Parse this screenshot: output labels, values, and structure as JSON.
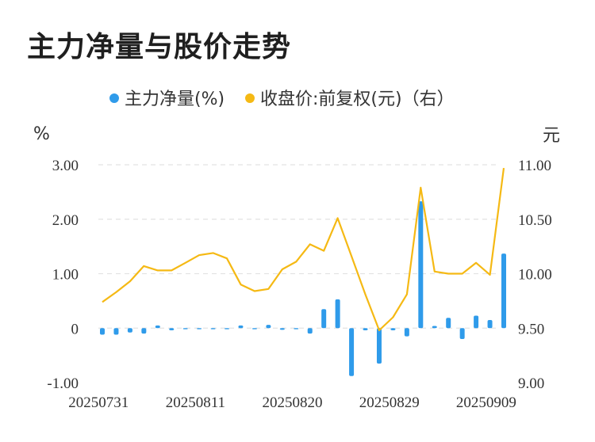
{
  "title": "主力净量与股价走势",
  "colors": {
    "bar": "#2f9bea",
    "line": "#f5b914",
    "grid": "#e3e3e3"
  },
  "chart_data": {
    "type": "bar+line",
    "legend": {
      "placement": "top-center",
      "items": [
        "主力净量(%)",
        "收盘价:前复权(元)（右）"
      ]
    },
    "left_unit": "%",
    "right_unit": "元",
    "left_ticks": [
      "3.00",
      "2.00",
      "1.00",
      "0",
      "-1.00"
    ],
    "right_ticks": [
      "11.00",
      "10.50",
      "10.00",
      "9.50",
      "9.00"
    ],
    "ylim_left": [
      -1.0,
      3.0
    ],
    "ylim_right": [
      9.0,
      11.0
    ],
    "x_tick_labels": [
      "20250731",
      "20250811",
      "20250820",
      "20250829",
      "20250909"
    ],
    "x_tick_index": [
      0,
      7,
      14,
      21,
      28
    ],
    "x": [
      "20250731",
      "20250801",
      "20250804",
      "20250805",
      "20250806",
      "20250807",
      "20250808",
      "20250811",
      "20250812",
      "20250813",
      "20250814",
      "20250815",
      "20250818",
      "20250819",
      "20250820",
      "20250821",
      "20250822",
      "20250825",
      "20250826",
      "20250827",
      "20250828",
      "20250829",
      "20250901",
      "20250902",
      "20250903",
      "20250904",
      "20250905",
      "20250908",
      "20250909",
      "20250910"
    ],
    "series": [
      {
        "name": "主力净量(%)",
        "type": "bar",
        "values": [
          -0.12,
          -0.12,
          -0.08,
          -0.1,
          0.05,
          -0.04,
          -0.02,
          -0.02,
          -0.02,
          -0.02,
          0.05,
          -0.02,
          0.06,
          -0.03,
          -0.02,
          -0.1,
          0.35,
          0.53,
          -0.88,
          -0.04,
          -0.65,
          -0.04,
          -0.15,
          2.33,
          0.04,
          0.19,
          -0.2,
          0.23,
          0.15,
          1.37
        ]
      },
      {
        "name": "收盘价:前复权(元)（右）",
        "type": "line",
        "values": [
          9.74,
          9.83,
          9.93,
          10.07,
          10.03,
          10.03,
          10.1,
          10.17,
          10.19,
          10.14,
          9.9,
          9.84,
          9.86,
          10.04,
          10.11,
          10.27,
          10.21,
          10.51,
          10.16,
          9.81,
          9.48,
          9.6,
          9.81,
          10.79,
          10.02,
          10.0,
          10.0,
          10.1,
          9.99,
          10.97
        ]
      }
    ]
  }
}
